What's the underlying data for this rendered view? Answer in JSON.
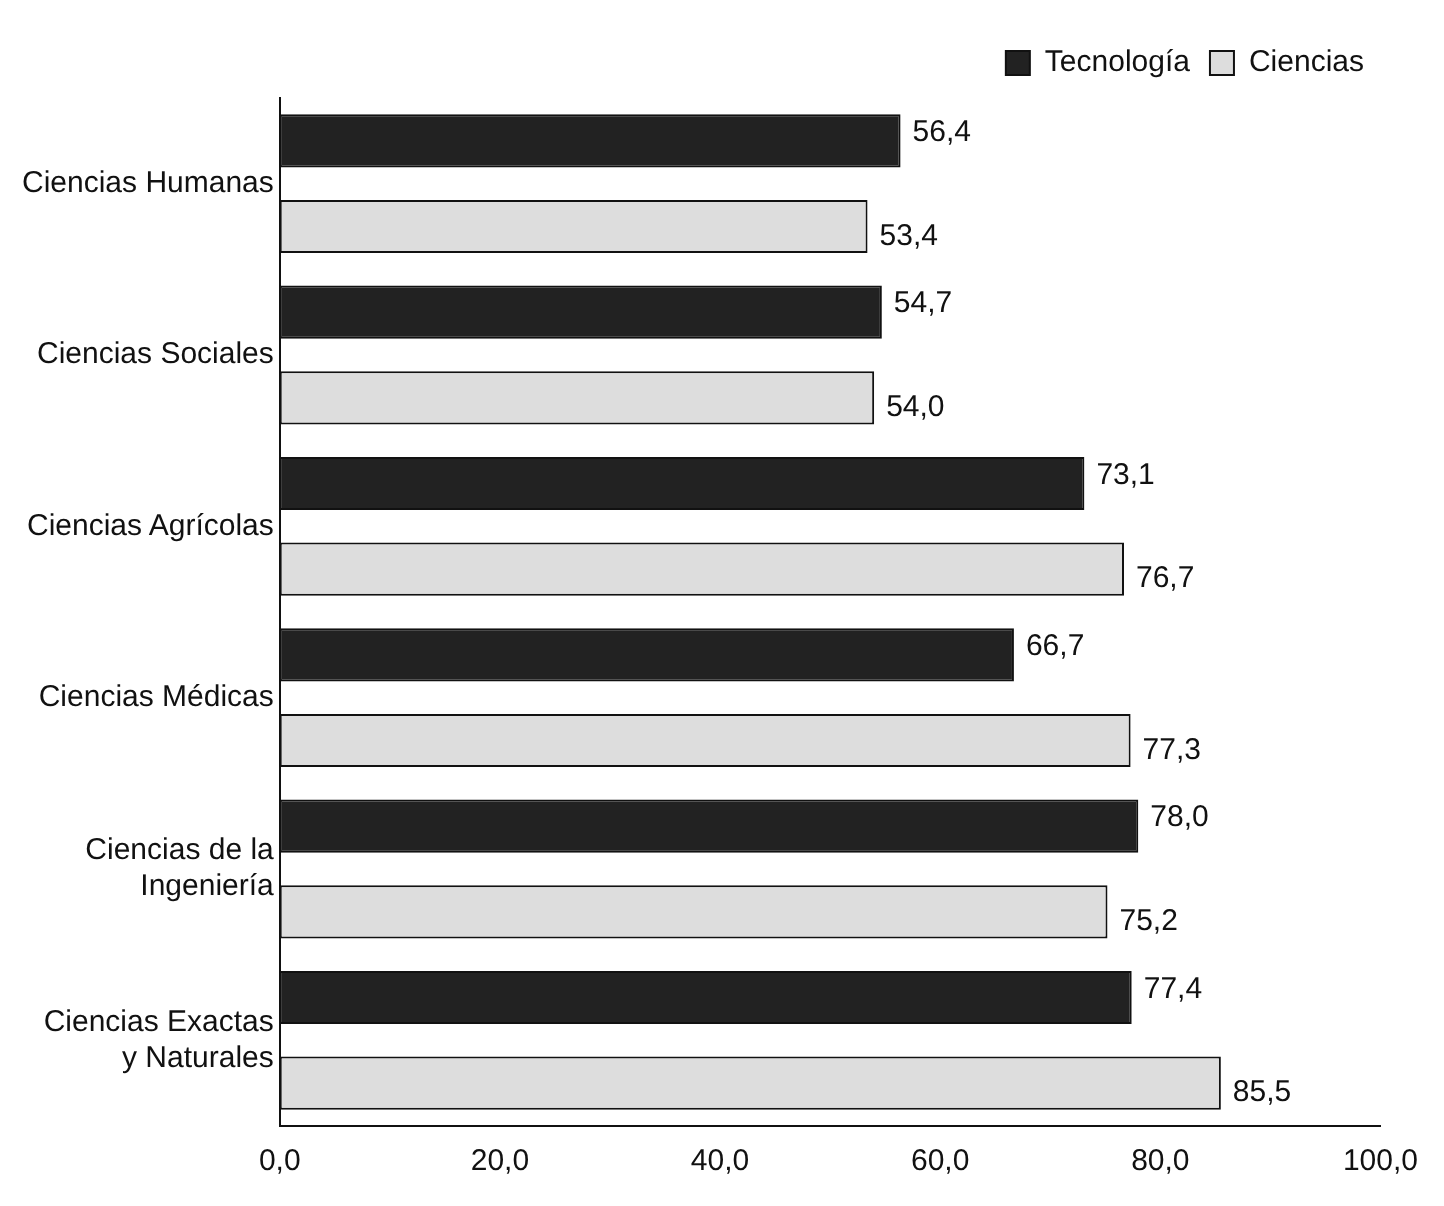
{
  "chart_data": {
    "type": "bar",
    "orientation": "horizontal",
    "categories": [
      "Ciencias Humanas",
      "Ciencias Sociales",
      "Ciencias Agrícolas",
      "Ciencias Médicas",
      "Ciencias de la Ingeniería",
      "Ciencias Exactas y Naturales"
    ],
    "series": [
      {
        "name": "Tecnología",
        "color": "#222222",
        "values": [
          56.4,
          54.7,
          73.1,
          66.7,
          78.0,
          77.4
        ],
        "value_labels": [
          "56,4",
          "54,7",
          "73,1",
          "66,7",
          "78,0",
          "77,4"
        ]
      },
      {
        "name": "Ciencias",
        "color": "#dddddd",
        "values": [
          53.4,
          54.0,
          76.7,
          77.3,
          75.2,
          85.5
        ],
        "value_labels": [
          "53,4",
          "54,0",
          "76,7",
          "77,3",
          "75,2",
          "85,5"
        ]
      }
    ],
    "xlim": [
      0,
      100
    ],
    "xticks": [
      {
        "value": 0,
        "label": "0,0"
      },
      {
        "value": 20,
        "label": "20,0"
      },
      {
        "value": 40,
        "label": "40,0"
      },
      {
        "value": 60,
        "label": "60,0"
      },
      {
        "value": 80,
        "label": "80,0"
      },
      {
        "value": 100,
        "label": "100,0"
      }
    ],
    "legend": "top right",
    "grid": false
  }
}
